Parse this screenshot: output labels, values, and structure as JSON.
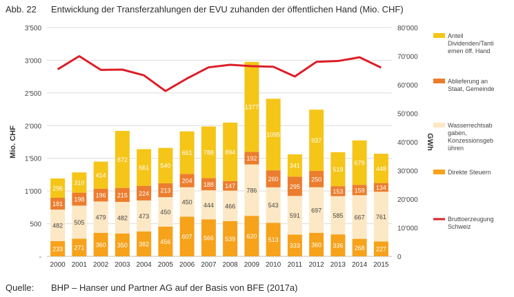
{
  "caption": {
    "label": "Abb. 22",
    "text": "Entwicklung der Transferzahlungen der EVU zuhanden der öffentlichen Hand (Mio. CHF)"
  },
  "source": {
    "label": "Quelle:",
    "text": "BHP – Hanser und Partner AG auf der Basis von BFE (2017a)"
  },
  "colors": {
    "dividenden": "#f5c518",
    "ablieferung": "#ec7d2e",
    "wasserrecht": "#fce8c4",
    "steuern": "#f6a21a",
    "brutto": "#dc1e28",
    "grid": "#dcdcdc"
  },
  "chart_data": {
    "type": "bar",
    "stacked": true,
    "categories": [
      "2000",
      "2001",
      "2002",
      "2003",
      "2004",
      "2005",
      "2006",
      "2007",
      "2008",
      "2009",
      "2010",
      "2011",
      "2012",
      "2013",
      "2014",
      "2015"
    ],
    "series": [
      {
        "name": "Direkte Steuern",
        "values": [
          233,
          271,
          360,
          350,
          382,
          456,
          607,
          566,
          539,
          620,
          513,
          333,
          360,
          336,
          268,
          227
        ]
      },
      {
        "name": "Wasserrechtsabgaben, Konzessionsgebühren",
        "values": [
          482,
          505,
          479,
          482,
          473,
          450,
          450,
          444,
          466,
          786,
          543,
          591,
          697,
          585,
          667,
          761
        ]
      },
      {
        "name": "Ablieferung an Staat, Gemeinde",
        "values": [
          181,
          198,
          196,
          215,
          224,
          213,
          204,
          188,
          147,
          192,
          260,
          295,
          250,
          153,
          159,
          134
        ]
      },
      {
        "name": "Anteil Dividenden/Tantiemen öff. Hand",
        "values": [
          296,
          310,
          414,
          872,
          561,
          540,
          651,
          788,
          894,
          1377,
          1095,
          341,
          937,
          519,
          679,
          448
        ]
      }
    ],
    "line_series": {
      "name": "Bruttoerzeugung Schweiz",
      "values": [
        65400,
        70000,
        65200,
        65300,
        63300,
        57800,
        62200,
        66100,
        67000,
        66500,
        66300,
        62900,
        68000,
        68300,
        69600,
        66000
      ]
    },
    "ylabel": "Mio. CHF",
    "y2label": "GWh",
    "ylim": [
      0,
      3500
    ],
    "y2lim": [
      0,
      80000
    ],
    "yticks": [
      "-",
      "500",
      "1'000",
      "1'500",
      "2'000",
      "2'500",
      "3'000",
      "3'500"
    ],
    "y2ticks": [
      "0",
      "10'000",
      "20'000",
      "30'000",
      "40'000",
      "50'000",
      "60'000",
      "70'000",
      "80'000"
    ],
    "legend_items": [
      {
        "key": "dividenden",
        "lines": [
          "Anteil",
          "Dividenden/Tanti",
          "emen öff. Hand"
        ]
      },
      {
        "key": "ablieferung",
        "lines": [
          "Ablieferung an",
          "Staat, Gemeinde"
        ]
      },
      {
        "key": "wasserrecht",
        "lines": [
          "Wasserrechtsab",
          "gaben,",
          "Konzessionsgeb",
          "ühren"
        ]
      },
      {
        "key": "steuern",
        "lines": [
          "Direkte Steuern"
        ]
      },
      {
        "key": "brutto",
        "lines": [
          "Bruttoerzeugung",
          "Schweiz"
        ]
      }
    ],
    "legend": "right",
    "grid": true
  }
}
